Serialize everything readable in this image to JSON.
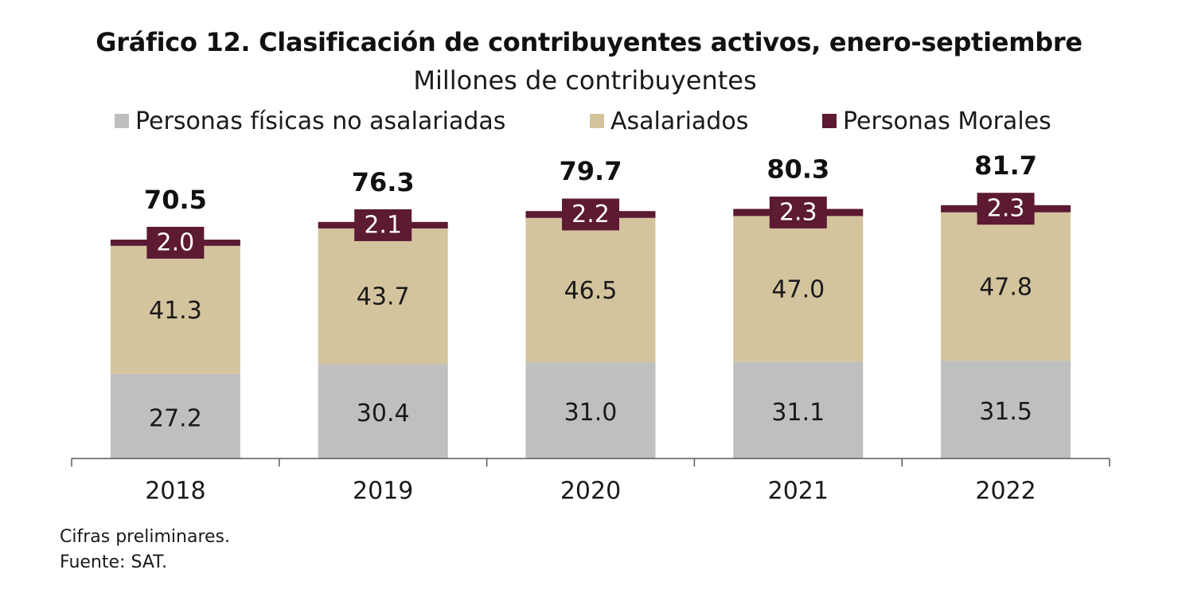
{
  "chart_data": {
    "type": "bar",
    "stacked": true,
    "title": "Gráfico 12. Clasificación de contribuyentes activos, enero-septiembre",
    "subtitle": "Millones de contribuyentes",
    "categories": [
      "2018",
      "2019",
      "2020",
      "2021",
      "2022"
    ],
    "series": [
      {
        "name": "Personas físicas no asalariadas",
        "color": "#bfbfbf",
        "values": [
          27.2,
          30.4,
          31.0,
          31.1,
          31.5
        ]
      },
      {
        "name": "Asalariados",
        "color": "#d4c49e",
        "values": [
          41.3,
          43.7,
          46.5,
          47.0,
          47.8
        ]
      },
      {
        "name": "Personas Morales",
        "color": "#5c1a33",
        "values": [
          2.0,
          2.1,
          2.2,
          2.3,
          2.3
        ]
      }
    ],
    "totals": [
      "70.5",
      "76.3",
      "79.7",
      "80.3",
      "81.7"
    ],
    "series_value_labels": [
      [
        "27.2",
        "30.4",
        "31.0",
        "31.1",
        "31.5"
      ],
      [
        "41.3",
        "43.7",
        "46.5",
        "47.0",
        "47.8"
      ],
      [
        "2.0",
        "2.1",
        "2.2",
        "2.3",
        "2.3"
      ]
    ],
    "legend_position": "top",
    "grid": false,
    "ylim": [
      0,
      100
    ]
  },
  "notes": {
    "preliminary": "Cifras preliminares.",
    "source": "Fuente: SAT."
  }
}
